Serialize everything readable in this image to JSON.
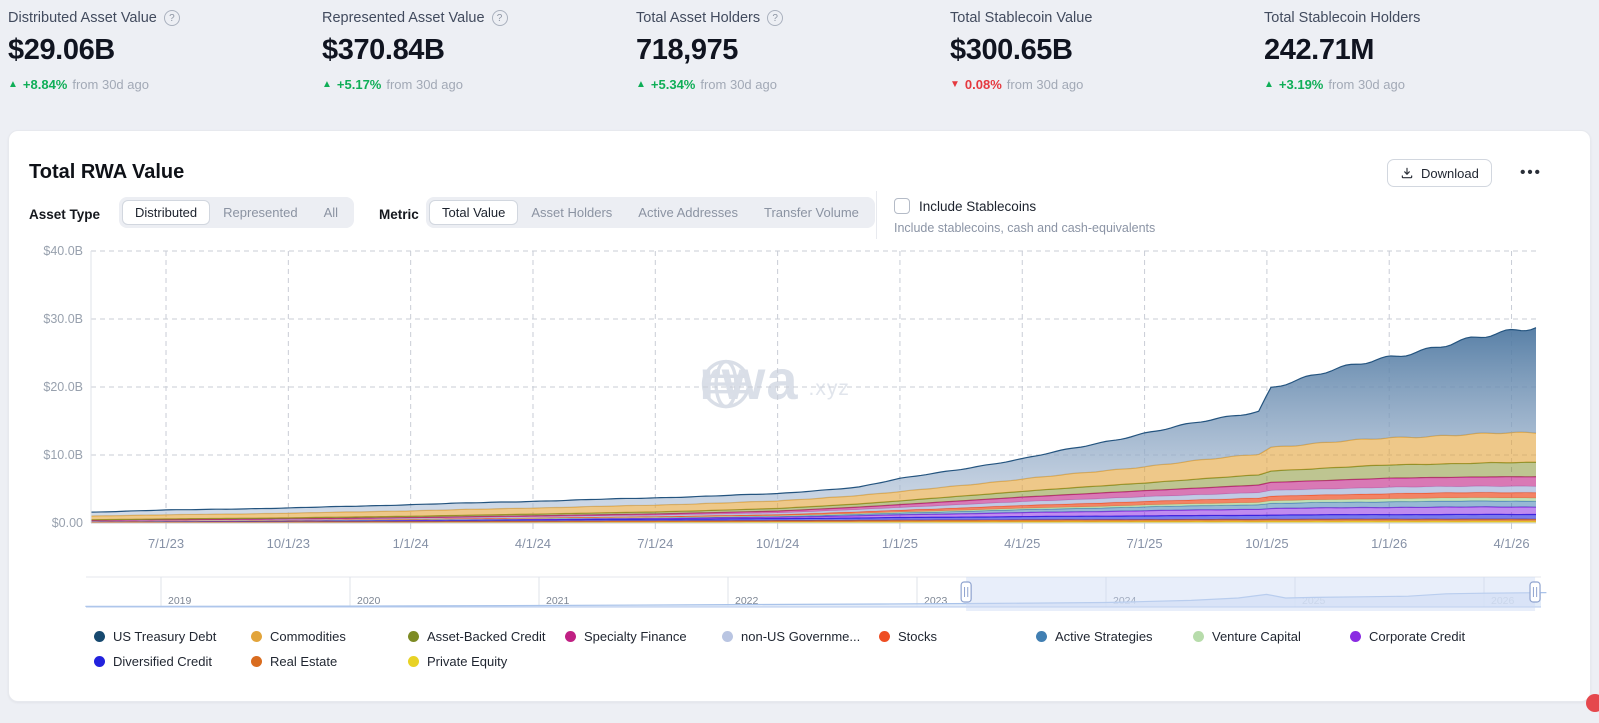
{
  "stats": [
    {
      "label": "Distributed Asset Value",
      "has_help": true,
      "value": "$29.06B",
      "delta": "+8.84%",
      "delta_dir": "up",
      "delta_suffix": "from 30d ago"
    },
    {
      "label": "Represented Asset Value",
      "has_help": true,
      "value": "$370.84B",
      "delta": "+5.17%",
      "delta_dir": "up",
      "delta_suffix": "from 30d ago"
    },
    {
      "label": "Total Asset Holders",
      "has_help": true,
      "value": "718,975",
      "delta": "+5.34%",
      "delta_dir": "up",
      "delta_suffix": "from 30d ago"
    },
    {
      "label": "Total Stablecoin Value",
      "has_help": false,
      "value": "$300.65B",
      "delta": "0.08%",
      "delta_dir": "down",
      "delta_suffix": "from 30d ago"
    },
    {
      "label": "Total Stablecoin Holders",
      "has_help": false,
      "value": "242.71M",
      "delta": "+3.19%",
      "delta_dir": "up",
      "delta_suffix": "from 30d ago"
    }
  ],
  "card": {
    "title": "Total RWA Value",
    "download_label": "Download",
    "menu_label": "•••",
    "asset_type_label": "Asset Type",
    "asset_type_options": [
      "Distributed",
      "Represented",
      "All"
    ],
    "asset_type_selected": "Distributed",
    "metric_label": "Metric",
    "metric_options": [
      "Total Value",
      "Asset Holders",
      "Active Addresses",
      "Transfer Volume"
    ],
    "metric_selected": "Total Value",
    "checkbox_label": "Include Stablecoins",
    "checkbox_sub": "Include stablecoins, cash and cash-equivalents",
    "checkbox_checked": false
  },
  "watermark": {
    "text": "rwa",
    "suffix": ".xyz"
  },
  "colors": {
    "up_green": "#0fae57",
    "down_red": "#e5383e",
    "selection_blue": "#ccdaf5"
  },
  "legend": {
    "rows": [
      [
        {
          "label": "US Treasury Debt",
          "color": "#17496f"
        },
        {
          "label": "Commodities",
          "color": "#e2a43b"
        },
        {
          "label": "Asset-Backed Credit",
          "color": "#7d8b24"
        },
        {
          "label": "Specialty Finance",
          "color": "#c02083"
        },
        {
          "label": "non-US Governme...",
          "color": "#b9c5e2"
        },
        {
          "label": "Stocks",
          "color": "#ee4e23"
        },
        {
          "label": "Active Strategies",
          "color": "#417fb2"
        },
        {
          "label": "Venture Capital",
          "color": "#b7dcab"
        },
        {
          "label": "Corporate Credit",
          "color": "#8a2be2"
        }
      ],
      [
        {
          "label": "Diversified Credit",
          "color": "#2222dd"
        },
        {
          "label": "Real Estate",
          "color": "#d96c1f"
        },
        {
          "label": "Private Equity",
          "color": "#e8d225"
        }
      ]
    ]
  },
  "chart_data": {
    "type": "area",
    "stacked": true,
    "title": "Total RWA Value (Distributed, Total Value)",
    "unit": "USD billions",
    "ylim": [
      0,
      40
    ],
    "grid": true,
    "y_ticks": [
      {
        "label": "$0.00",
        "value": 0
      },
      {
        "label": "$10.0B",
        "value": 10
      },
      {
        "label": "$20.0B",
        "value": 20
      },
      {
        "label": "$30.0B",
        "value": 30
      },
      {
        "label": "$40.0B",
        "value": 40
      }
    ],
    "x_ticks": [
      "7/1/23",
      "10/1/23",
      "1/1/24",
      "4/1/24",
      "7/1/24",
      "10/1/24",
      "1/1/25",
      "4/1/25",
      "7/1/25",
      "10/1/25",
      "1/1/26",
      "4/1/26"
    ],
    "x_tick_months": [
      6,
      9,
      12,
      15,
      18,
      21,
      24,
      27,
      30,
      33,
      36,
      39
    ],
    "sample_dates": [
      "5/1/23",
      "7/1/23",
      "10/1/23",
      "1/1/24",
      "4/1/24",
      "7/1/24",
      "10/1/24",
      "12/1/24",
      "1/1/25",
      "4/1/25",
      "7/1/25",
      "9/25/25",
      "10/5/25",
      "1/1/26",
      "3/15/26",
      "4/19/26"
    ],
    "sample_months": [
      4.16,
      6,
      9,
      12,
      15,
      18,
      21,
      23,
      24,
      27,
      30,
      32.8,
      33.1,
      36,
      38.5,
      39.6
    ],
    "series": [
      {
        "name": "Private Equity",
        "color": "#e8d225",
        "fill_opacity": 0.8,
        "values": [
          0.05,
          0.06,
          0.07,
          0.08,
          0.1,
          0.12,
          0.14,
          0.16,
          0.17,
          0.2,
          0.22,
          0.23,
          0.24,
          0.25,
          0.25,
          0.25
        ]
      },
      {
        "name": "Real Estate",
        "color": "#d96c1f",
        "fill_opacity": 0.75,
        "values": [
          0.1,
          0.11,
          0.12,
          0.14,
          0.16,
          0.18,
          0.2,
          0.22,
          0.23,
          0.25,
          0.27,
          0.28,
          0.29,
          0.3,
          0.3,
          0.3
        ]
      },
      {
        "name": "Diversified Credit",
        "color": "#2222dd",
        "fill_opacity": 0.6,
        "values": [
          0.15,
          0.16,
          0.18,
          0.2,
          0.23,
          0.26,
          0.3,
          0.36,
          0.4,
          0.49,
          0.56,
          0.62,
          0.65,
          0.69,
          0.7,
          0.7
        ]
      },
      {
        "name": "Corporate Credit",
        "color": "#8a2be2",
        "fill_opacity": 0.55,
        "values": [
          0.0,
          0.01,
          0.03,
          0.06,
          0.1,
          0.15,
          0.22,
          0.33,
          0.4,
          0.58,
          0.75,
          0.9,
          0.96,
          1.06,
          1.1,
          1.1
        ]
      },
      {
        "name": "Active Strategies",
        "color": "#417fb2",
        "fill_opacity": 0.55,
        "values": [
          0.0,
          0.01,
          0.02,
          0.04,
          0.07,
          0.1,
          0.15,
          0.24,
          0.29,
          0.45,
          0.58,
          0.7,
          0.76,
          0.86,
          0.9,
          0.9
        ]
      },
      {
        "name": "Venture Capital",
        "color": "#b7dcab",
        "fill_opacity": 0.85,
        "values": [
          0.0,
          0.0,
          0.01,
          0.02,
          0.03,
          0.04,
          0.06,
          0.09,
          0.11,
          0.17,
          0.24,
          0.31,
          0.35,
          0.42,
          0.45,
          0.45
        ]
      },
      {
        "name": "Stocks",
        "color": "#ee4e23",
        "fill_opacity": 0.7,
        "values": [
          0.02,
          0.03,
          0.04,
          0.06,
          0.09,
          0.12,
          0.18,
          0.26,
          0.3,
          0.45,
          0.56,
          0.66,
          0.7,
          0.78,
          0.8,
          0.8
        ]
      },
      {
        "name": "non-US Governme...",
        "color": "#b9c5e2",
        "fill_opacity": 0.9,
        "values": [
          0.02,
          0.03,
          0.05,
          0.08,
          0.12,
          0.16,
          0.22,
          0.3,
          0.35,
          0.52,
          0.65,
          0.76,
          0.8,
          0.88,
          0.9,
          0.9
        ]
      },
      {
        "name": "Specialty Finance",
        "color": "#c02083",
        "fill_opacity": 0.6,
        "values": [
          0.05,
          0.07,
          0.09,
          0.12,
          0.16,
          0.2,
          0.28,
          0.38,
          0.45,
          0.7,
          0.92,
          1.12,
          1.22,
          1.35,
          1.4,
          1.4
        ]
      },
      {
        "name": "Asset-Backed Credit",
        "color": "#7d8b24",
        "fill_opacity": 0.5,
        "values": [
          0.1,
          0.12,
          0.15,
          0.2,
          0.25,
          0.3,
          0.38,
          0.48,
          0.55,
          0.85,
          1.15,
          1.5,
          1.7,
          1.95,
          2.05,
          2.1
        ]
      },
      {
        "name": "Commodities",
        "color": "#e2a43b",
        "fill_opacity": 0.6,
        "values": [
          0.55,
          0.6,
          0.68,
          0.8,
          0.9,
          1.0,
          1.1,
          1.25,
          1.35,
          1.8,
          2.4,
          3.1,
          3.5,
          4.0,
          4.3,
          4.4
        ]
      },
      {
        "name": "US Treasury Debt",
        "color": "#17496f",
        "stroke": "#24547f",
        "gradient": true,
        "fill_opacity": 0.9,
        "values": [
          0.56,
          0.7,
          0.76,
          0.9,
          0.99,
          1.07,
          1.07,
          1.23,
          1.9,
          2.94,
          4.9,
          6.32,
          8.83,
          11.96,
          14.35,
          15.7
        ]
      }
    ],
    "brush": {
      "years": [
        2019,
        2020,
        2021,
        2022,
        2023,
        2024,
        2025,
        2026
      ],
      "profile_x_year": [
        2018.6,
        2019,
        2020,
        2021,
        2022,
        2022.8,
        2023.4,
        2024.0,
        2024.45,
        2024.7,
        2024.85,
        2024.95,
        2025.1,
        2025.35,
        2025.6,
        2025.8,
        2026.0,
        2026.33
      ],
      "profile_height_frac": [
        0.02,
        0.02,
        0.03,
        0.05,
        0.08,
        0.1,
        0.12,
        0.15,
        0.22,
        0.3,
        0.42,
        0.3,
        0.32,
        0.34,
        0.36,
        0.44,
        0.46,
        0.48
      ],
      "selection_years": [
        2023.26,
        2026.27
      ]
    }
  }
}
